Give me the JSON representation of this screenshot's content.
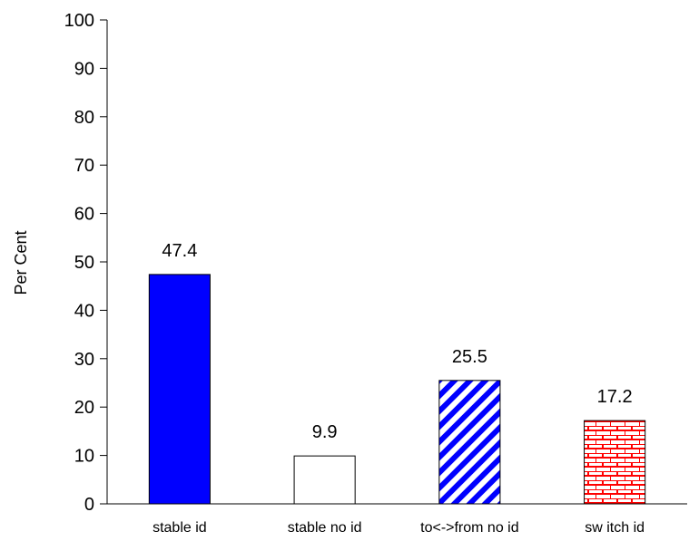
{
  "chart_data": {
    "type": "bar",
    "categories": [
      "stable id",
      "stable no id",
      "to<->from no id",
      "sw itch id"
    ],
    "values": [
      47.4,
      9.9,
      25.5,
      17.2
    ],
    "value_labels": [
      "47.4",
      "9.9",
      "25.5",
      "17.2"
    ],
    "fills": [
      "solid",
      "empty",
      "diagonal-stripes",
      "brick"
    ],
    "colors": [
      "#0000ff",
      "#ffffff",
      "#0000ff",
      "#ff0000"
    ],
    "title": "",
    "xlabel": "",
    "ylabel": "Per Cent",
    "ylim": [
      0,
      100
    ],
    "yticks": [
      "0",
      "10",
      "20",
      "30",
      "40",
      "50",
      "60",
      "70",
      "80",
      "90",
      "100"
    ],
    "grid": false,
    "legend": "none"
  }
}
